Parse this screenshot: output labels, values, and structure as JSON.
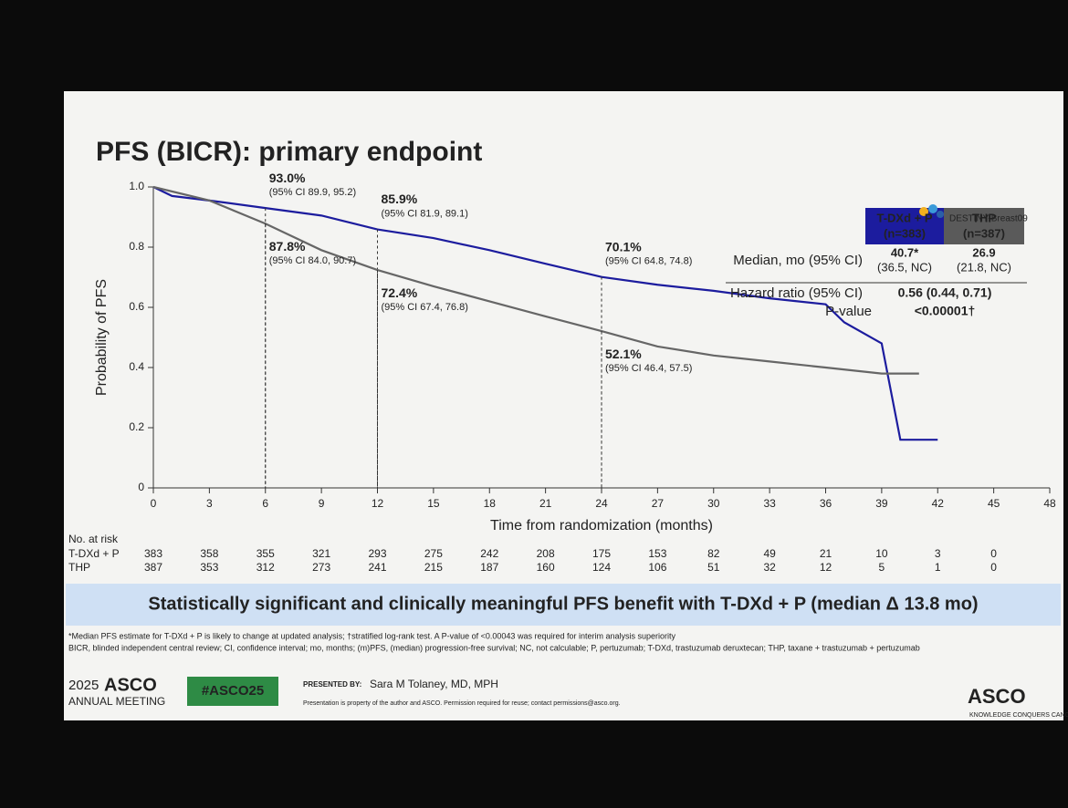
{
  "chart_data": {
    "type": "line",
    "title": "PFS (BICR): primary endpoint",
    "x_label": "Time from randomization (months)",
    "y_label": "Probability of PFS",
    "xlim": [
      0,
      48
    ],
    "xticks": [
      0,
      3,
      6,
      9,
      12,
      15,
      18,
      21,
      24,
      27,
      30,
      33,
      36,
      39,
      42,
      45,
      48
    ],
    "ylim": [
      0,
      1
    ],
    "yticks": [
      0,
      0.2,
      0.4,
      0.6,
      0.8,
      {
        "value": 1,
        "label": "1.0"
      }
    ],
    "series": [
      {
        "name": "T-DXd + P",
        "color": "#1c1c9e",
        "x": [
          0,
          1,
          3,
          6,
          9,
          12,
          15,
          18,
          21,
          24,
          27,
          30,
          33,
          36,
          37,
          39,
          40,
          42
        ],
        "values": [
          1.0,
          0.97,
          0.955,
          0.93,
          0.905,
          0.859,
          0.83,
          0.79,
          0.745,
          0.701,
          0.675,
          0.655,
          0.63,
          0.61,
          0.55,
          0.48,
          0.16,
          0.16
        ],
        "annotations": [
          {
            "x": 6,
            "y": 0.93,
            "label": "93.0%",
            "ci": "(95% CI 89.9, 95.2)"
          },
          {
            "x": 12,
            "y": 0.859,
            "label": "85.9%",
            "ci": "(95% CI 81.9, 89.1)"
          },
          {
            "x": 24,
            "y": 0.701,
            "label": "70.1%",
            "ci": "(95% CI 64.8, 74.8)"
          }
        ]
      },
      {
        "name": "THP",
        "color": "#666666",
        "x": [
          0,
          3,
          6,
          9,
          12,
          15,
          18,
          21,
          24,
          27,
          30,
          33,
          36,
          39,
          41
        ],
        "values": [
          1.0,
          0.955,
          0.878,
          0.79,
          0.724,
          0.67,
          0.62,
          0.57,
          0.521,
          0.47,
          0.44,
          0.42,
          0.4,
          0.38,
          0.38
        ],
        "annotations": [
          {
            "x": 6,
            "y": 0.878,
            "label": "87.8%",
            "ci": "(95% CI 84.0, 90.7)"
          },
          {
            "x": 12,
            "y": 0.724,
            "label": "72.4%",
            "ci": "(95% CI 67.4, 76.8)"
          },
          {
            "x": 24,
            "y": 0.521,
            "label": "52.1%",
            "ci": "(95% CI 46.4, 57.5)"
          }
        ]
      }
    ]
  },
  "trial_logo": "DESTINY-Breast09",
  "stats_table": {
    "headers": [
      [
        "T-DXd + P",
        "(n=383)"
      ],
      [
        "THP",
        "(n=387)"
      ]
    ],
    "rows": [
      {
        "label": "Median, mo (95% CI)",
        "cells": [
          [
            "40.7*",
            "(36.5, NC)"
          ],
          [
            "26.9",
            "(21.8, NC)"
          ]
        ]
      },
      {
        "label": "Hazard ratio (95% CI)",
        "value": "0.56 (0.44, 0.71)"
      },
      {
        "label": "P-value",
        "value": "<0.00001†"
      }
    ]
  },
  "risk_table": {
    "title": "No. at risk",
    "rows": [
      {
        "name": "T-DXd + P",
        "counts": [
          383,
          358,
          355,
          321,
          293,
          275,
          242,
          208,
          175,
          153,
          82,
          49,
          21,
          10,
          3,
          0
        ]
      },
      {
        "name": "THP",
        "counts": [
          387,
          353,
          312,
          273,
          241,
          215,
          187,
          160,
          124,
          106,
          51,
          32,
          12,
          5,
          1,
          0
        ]
      }
    ]
  },
  "banner": "Statistically significant and clinically meaningful PFS benefit with T-DXd + P (median Δ 13.8 mo)",
  "footnotes": [
    "*Median PFS estimate for T-DXd + P is likely to change at updated analysis; †stratified log-rank test. A P-value of <0.00043 was required for interim analysis superiority",
    "BICR, blinded independent central review; CI, confidence interval; mo, months; (m)PFS, (median) progression-free survival; NC, not calculable; P, pertuzumab; T-DXd, trastuzumab deruxtecan; THP, taxane + trastuzumab + pertuzumab"
  ],
  "footer": {
    "year": "2025",
    "brand": "ASCO",
    "meeting": "ANNUAL MEETING",
    "hashtag": "#ASCO25",
    "presented_by": "PRESENTED BY:",
    "presenter": "Sara M Tolaney, MD, MPH",
    "notice": "Presentation is property of the author and ASCO. Permission required for reuse; contact permissions@asco.org.",
    "society": "ASCO",
    "tagline": "KNOWLEDGE CONQUERS CANCER"
  }
}
